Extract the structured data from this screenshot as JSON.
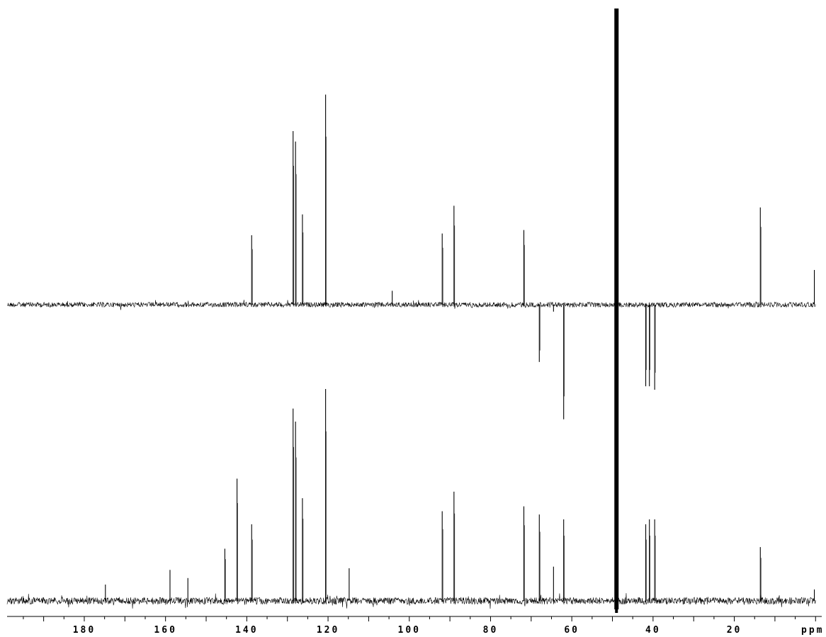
{
  "chart_data": [
    {
      "type": "line",
      "name": "",
      "x_unit": "ppm",
      "xlim": [
        199,
        0
      ],
      "reversed_x": true,
      "baseline": 0,
      "peak_color": "#000000",
      "peaks": [
        {
          "ppm": 138.8,
          "intensity": 0.4
        },
        {
          "ppm": 128.6,
          "intensity": 1.0
        },
        {
          "ppm": 128.0,
          "intensity": 0.94
        },
        {
          "ppm": 126.3,
          "intensity": 0.52
        },
        {
          "ppm": 120.6,
          "intensity": 1.21
        },
        {
          "ppm": 104.2,
          "intensity": 0.08
        },
        {
          "ppm": 91.9,
          "intensity": 0.41
        },
        {
          "ppm": 89.0,
          "intensity": 0.57
        },
        {
          "ppm": 71.8,
          "intensity": 0.43
        },
        {
          "ppm": 68.0,
          "intensity": -0.33
        },
        {
          "ppm": 64.5,
          "intensity": -0.04
        },
        {
          "ppm": 62.0,
          "intensity": -0.66
        },
        {
          "ppm": 41.8,
          "intensity": -0.47
        },
        {
          "ppm": 40.9,
          "intensity": -0.47
        },
        {
          "ppm": 39.6,
          "intensity": -0.49
        },
        {
          "ppm": 13.6,
          "intensity": 0.56
        },
        {
          "ppm": 0.3,
          "intensity": 0.2
        }
      ]
    },
    {
      "type": "line",
      "name": "",
      "x_unit": "ppm",
      "xlim": [
        199,
        0
      ],
      "reversed_x": true,
      "baseline": 0,
      "peak_color": "#000000",
      "peaks": [
        {
          "ppm": 174.8,
          "intensity": 0.1
        },
        {
          "ppm": 158.9,
          "intensity": 0.19
        },
        {
          "ppm": 154.5,
          "intensity": 0.14
        },
        {
          "ppm": 145.4,
          "intensity": 0.32
        },
        {
          "ppm": 142.4,
          "intensity": 0.75
        },
        {
          "ppm": 138.8,
          "intensity": 0.47
        },
        {
          "ppm": 128.6,
          "intensity": 1.18
        },
        {
          "ppm": 128.0,
          "intensity": 1.1
        },
        {
          "ppm": 126.3,
          "intensity": 0.63
        },
        {
          "ppm": 120.6,
          "intensity": 1.3
        },
        {
          "ppm": 114.8,
          "intensity": 0.2
        },
        {
          "ppm": 91.9,
          "intensity": 0.55
        },
        {
          "ppm": 89.0,
          "intensity": 0.67
        },
        {
          "ppm": 71.8,
          "intensity": 0.58
        },
        {
          "ppm": 68.0,
          "intensity": 0.53
        },
        {
          "ppm": 64.5,
          "intensity": 0.21
        },
        {
          "ppm": 62.0,
          "intensity": 0.5
        },
        {
          "ppm": 41.8,
          "intensity": 0.47
        },
        {
          "ppm": 40.9,
          "intensity": 0.5
        },
        {
          "ppm": 39.6,
          "intensity": 0.5
        },
        {
          "ppm": 13.6,
          "intensity": 0.33
        },
        {
          "ppm": 0.3,
          "intensity": 0.07
        }
      ]
    }
  ],
  "solvent_peak": {
    "ppm": 49.0,
    "label": ""
  },
  "x_axis": {
    "ticks": [
      180,
      160,
      140,
      120,
      100,
      80,
      60,
      40,
      20
    ],
    "tick_labels": [
      "180",
      "160",
      "140",
      "120",
      "100",
      "80",
      "60",
      "40",
      "20"
    ],
    "minor_step": 5,
    "unit_label": "ppm"
  },
  "colors": {
    "ink": "#000000",
    "background": "#ffffff"
  }
}
